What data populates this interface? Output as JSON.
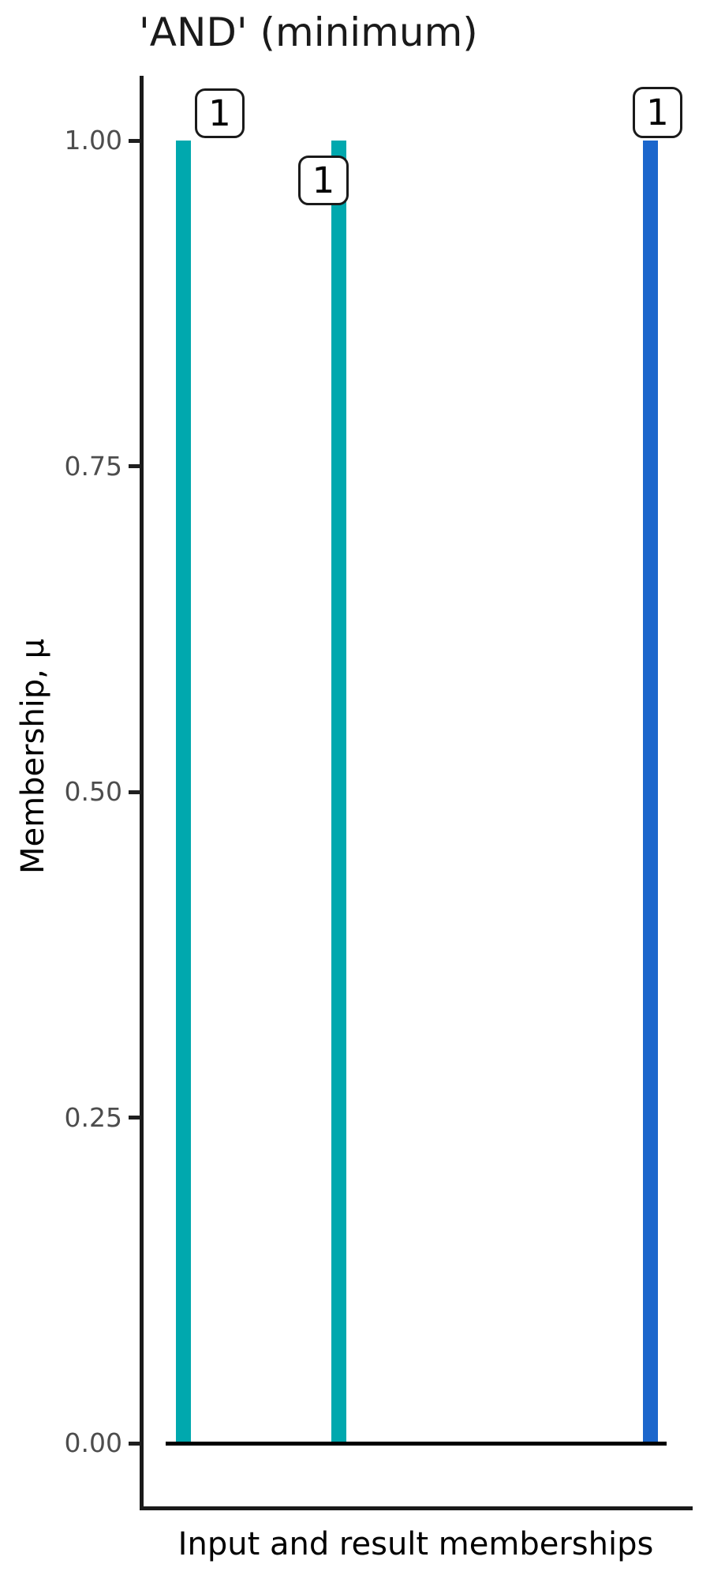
{
  "chart_data": {
    "type": "bar",
    "title": "'AND' (minimum)",
    "xlabel": "Input and result memberships",
    "ylabel": "Membership, μ",
    "ylim": [
      0,
      1.1
    ],
    "grid": false,
    "legend": false,
    "yticks": [
      {
        "value": 0.0,
        "label": "0.00"
      },
      {
        "value": 0.25,
        "label": "0.25"
      },
      {
        "value": 0.5,
        "label": "0.50"
      },
      {
        "value": 0.75,
        "label": "0.75"
      },
      {
        "value": 1.0,
        "label": "1.00"
      }
    ],
    "bars": [
      {
        "value": 1,
        "annotation": "1",
        "color": "#00A8AE",
        "role": "input-membership-1"
      },
      {
        "value": 1,
        "annotation": "1",
        "color": "#00A8AE",
        "role": "input-membership-2"
      },
      {
        "value": 1,
        "annotation": "1",
        "color": "#1B66CC",
        "role": "result-membership"
      }
    ],
    "baseline_value": 0
  },
  "colors": {
    "teal": "#00A8AE",
    "blue": "#1B66CC",
    "axis": "#1a1a1a",
    "tick_text": "#4d4d4d",
    "label_box_fill": "#ffffff",
    "label_box_border": "#1a1a1a"
  }
}
